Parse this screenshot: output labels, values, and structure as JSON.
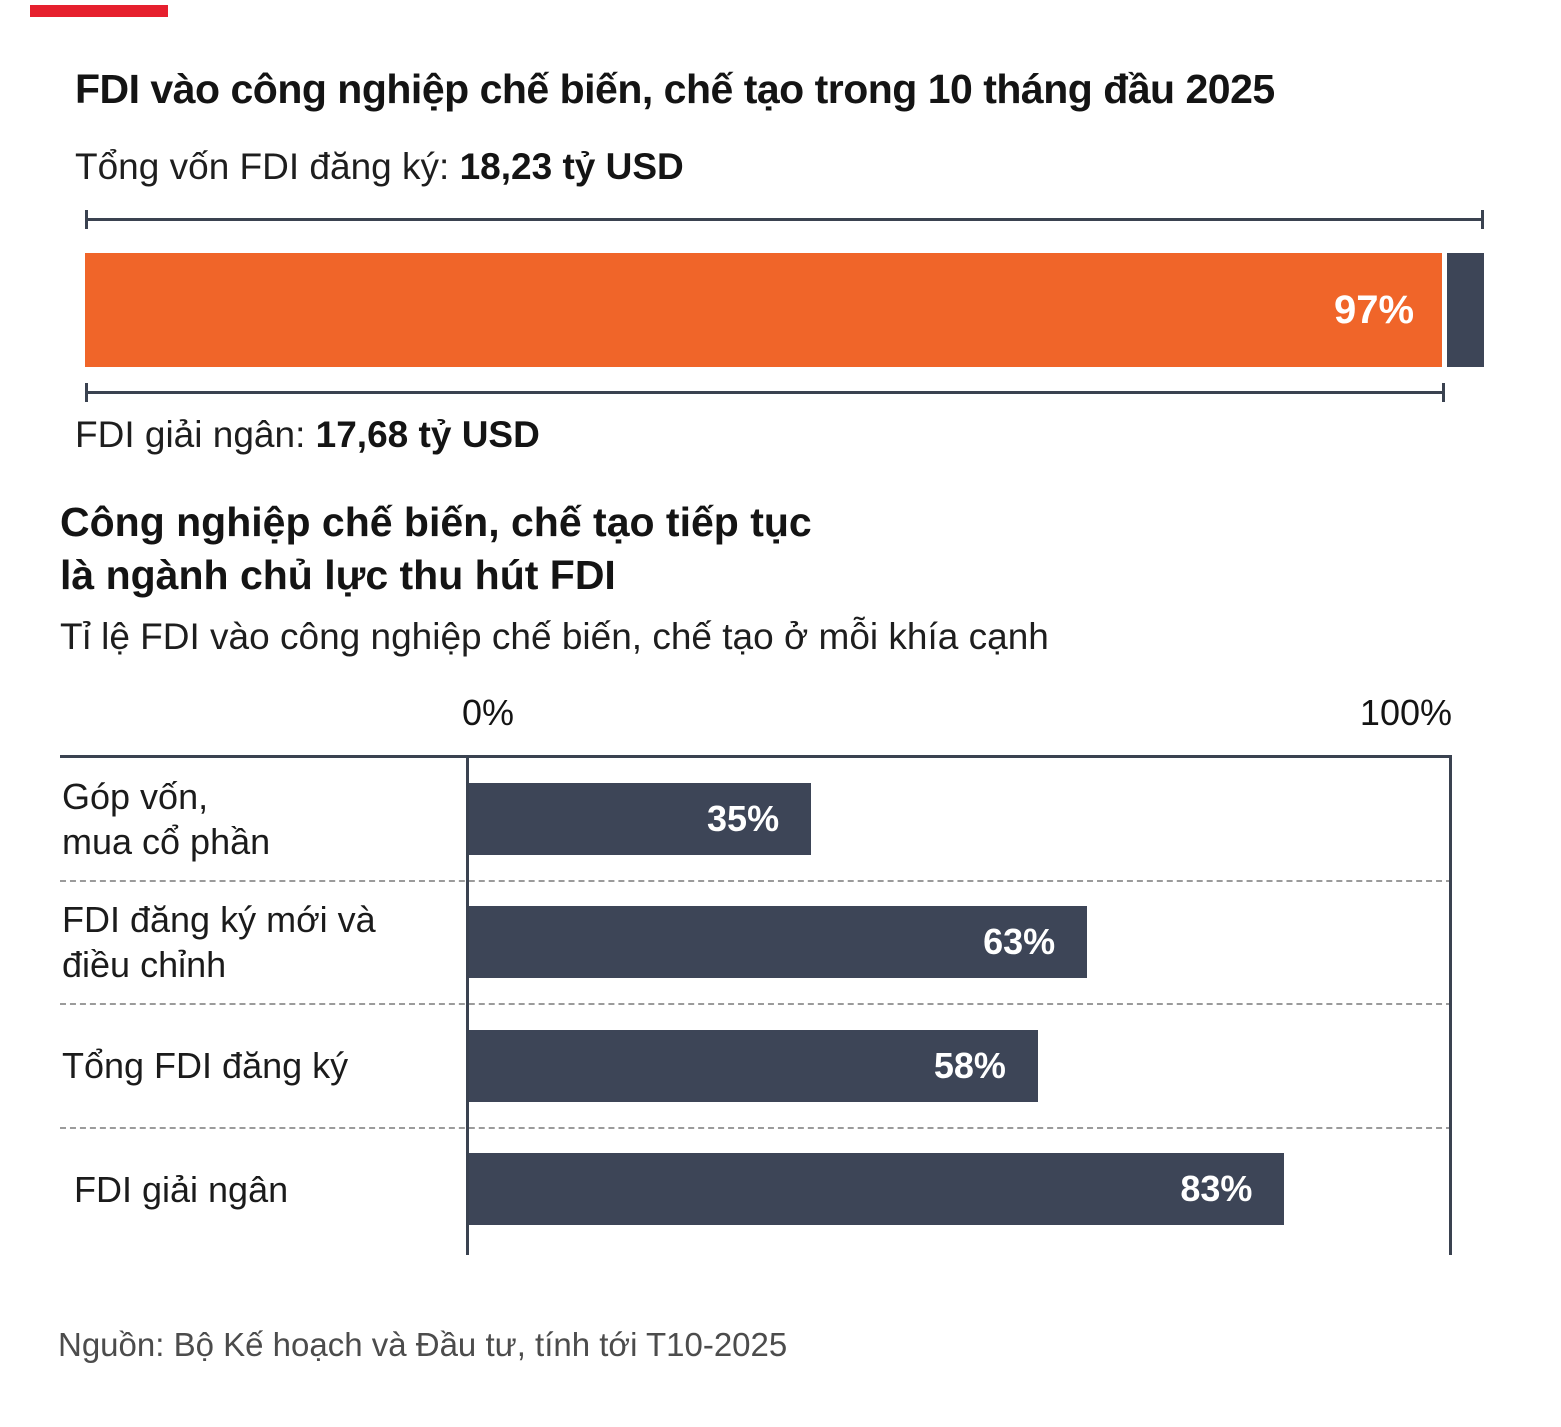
{
  "colors": {
    "orange": "#f06529",
    "navy": "#3d4557",
    "line": "#3a4250",
    "dash": "#9b9b9b",
    "red": "#e6202e"
  },
  "top_chart": {
    "title": "FDI vào công nghiệp chế biến, chế tạo trong 10 tháng đầu 2025",
    "registered_label": "Tổng vốn FDI đăng ký: ",
    "registered_value": "18,23 tỷ USD",
    "disbursed_label": "FDI giải ngân: ",
    "disbursed_value": "17,68 tỷ USD",
    "disbursed_percent": 97,
    "disbursed_percent_label": "97%"
  },
  "bottom_chart": {
    "heading_line1": "Công nghiệp chế biến, chế tạo tiếp tục",
    "heading_line2": "là ngành chủ lực thu hút FDI",
    "subtitle": "Tỉ lệ FDI vào công nghiệp chế biến, chế tạo ở mỗi khía cạnh",
    "axis_min_label": "0%",
    "axis_max_label": "100%",
    "rows": [
      {
        "label_line1": "Góp vốn,",
        "label_line2": "mua cổ phần",
        "value": 35,
        "value_label": "35%"
      },
      {
        "label_line1": "FDI đăng ký mới và",
        "label_line2": "điều chỉnh",
        "value": 63,
        "value_label": "63%"
      },
      {
        "label_line1": "Tổng FDI đăng ký",
        "value": 58,
        "value_label": "58%"
      },
      {
        "label_line1": "FDI giải ngân",
        "value": 83,
        "value_label": "83%"
      }
    ]
  },
  "source": "Nguồn: Bộ Kế hoạch và Đầu tư, tính tới T10-2025",
  "chart_data": [
    {
      "type": "bar",
      "orientation": "horizontal",
      "title": "FDI vào công nghiệp chế biến, chế tạo trong 10 tháng đầu 2025",
      "categories": [
        "Tổng vốn FDI đăng ký",
        "FDI giải ngân"
      ],
      "values_ty_usd": [
        18.23,
        17.68
      ],
      "percent_disbursed_of_registered": 97,
      "data_labels": [
        "97%"
      ],
      "colors": {
        "disbursed": "#f06529",
        "remainder": "#3d4557"
      },
      "legend_position": "none",
      "grid": false
    },
    {
      "type": "bar",
      "orientation": "horizontal",
      "title": "Công nghiệp chế biến, chế tạo tiếp tục là ngành chủ lực thu hút FDI",
      "subtitle": "Tỉ lệ FDI vào công nghiệp chế biến, chế tạo ở mỗi khía cạnh",
      "categories": [
        "Góp vốn, mua cổ phần",
        "FDI đăng ký mới và điều chỉnh",
        "Tổng FDI đăng ký",
        "FDI giải ngân"
      ],
      "values": [
        35,
        63,
        58,
        83
      ],
      "data_labels": [
        "35%",
        "63%",
        "58%",
        "83%"
      ],
      "xlabel": "",
      "ylabel": "",
      "xlim": [
        0,
        100
      ],
      "x_tick_labels": [
        "0%",
        "100%"
      ],
      "bar_color": "#3d4557",
      "grid": "dashed horizontal row separators",
      "legend_position": "none"
    }
  ]
}
